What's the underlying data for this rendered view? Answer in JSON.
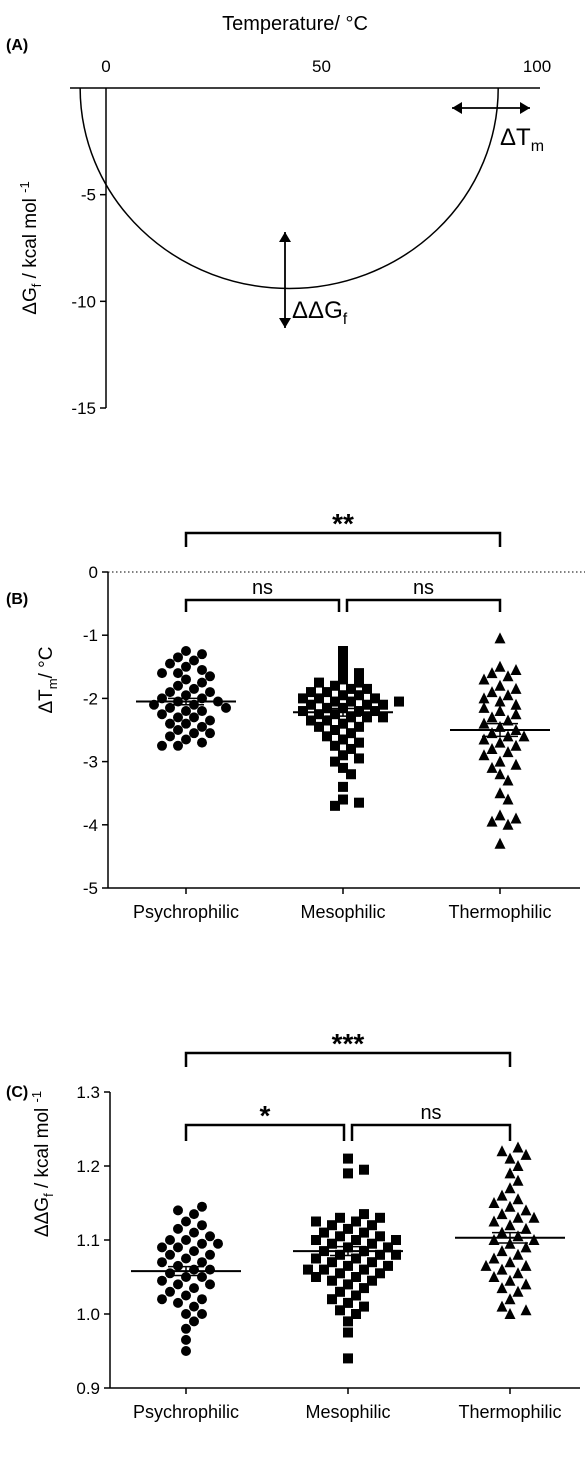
{
  "chart_data": [
    {
      "panel": "(A)",
      "type": "line",
      "xlabel": "Temperature/ °C",
      "ylabel": {
        "main": "ΔG",
        "sub": "f",
        "rest": " / kcal mol ",
        "sup": "-1"
      },
      "xlim": [
        0,
        100
      ],
      "ylim": [
        -15,
        0
      ],
      "xticks": [
        "0",
        "50",
        "100"
      ],
      "yticks": [
        "-5",
        "-10",
        "-15"
      ],
      "curve": {
        "Tmin": -9,
        "Tmax": 88,
        "Ts": 42.5,
        "Gmin": -9.4
      },
      "annotations": [
        {
          "main": "ΔT",
          "sub": "m"
        },
        {
          "main": "ΔΔG",
          "sub": "f"
        }
      ]
    },
    {
      "panel": "(B)",
      "type": "scatter",
      "ylabel": {
        "main": "ΔT",
        "sub": "m",
        "rest": "/ °C"
      },
      "ylim": [
        -5,
        0
      ],
      "yticks": [
        "0",
        "-1",
        "-2",
        "-3",
        "-4",
        "-5"
      ],
      "categories": [
        "Psychrophilic",
        "Mesophilic",
        "Thermophilic"
      ],
      "markers": [
        "circle",
        "square",
        "triangle"
      ],
      "means": [
        -2.05,
        -2.22,
        -2.5
      ],
      "sems": [
        0.05,
        0.06,
        0.1
      ],
      "significance": [
        {
          "from": 0,
          "to": 2,
          "label": "**"
        },
        {
          "from": 0,
          "to": 1,
          "label": "ns"
        },
        {
          "from": 1,
          "to": 2,
          "label": "ns"
        }
      ],
      "series": [
        {
          "name": "Psychrophilic",
          "values": [
            -1.25,
            -1.3,
            -1.35,
            -1.4,
            -1.5,
            -1.55,
            -1.6,
            -1.6,
            -1.7,
            -1.75,
            -1.8,
            -1.85,
            -1.9,
            -1.9,
            -1.95,
            -2.0,
            -2.0,
            -2.05,
            -2.05,
            -2.1,
            -2.1,
            -2.15,
            -2.2,
            -2.2,
            -2.25,
            -2.3,
            -2.3,
            -2.35,
            -2.4,
            -2.4,
            -2.45,
            -2.5,
            -2.55,
            -2.55,
            -2.6,
            -2.65,
            -2.7,
            -2.75,
            -2.75,
            -1.65,
            -2.15,
            -1.45
          ]
        },
        {
          "name": "Mesophilic",
          "values": [
            -1.25,
            -1.4,
            -1.55,
            -1.6,
            -1.7,
            -1.75,
            -1.8,
            -1.85,
            -1.85,
            -1.9,
            -1.95,
            -1.95,
            -2.0,
            -2.0,
            -2.0,
            -2.05,
            -2.05,
            -2.1,
            -2.1,
            -2.15,
            -2.15,
            -2.2,
            -2.2,
            -2.2,
            -2.25,
            -2.25,
            -2.3,
            -2.3,
            -2.35,
            -2.35,
            -2.4,
            -2.45,
            -2.5,
            -2.55,
            -2.6,
            -2.65,
            -2.7,
            -2.75,
            -2.8,
            -2.9,
            -2.95,
            -3.0,
            -3.1,
            -3.2,
            -3.4,
            -3.6,
            -3.65,
            -3.7,
            -1.9,
            -2.1,
            -2.3,
            -2.45,
            -1.75,
            -2.05
          ]
        },
        {
          "name": "Thermophilic",
          "values": [
            -1.05,
            -1.5,
            -1.55,
            -1.6,
            -1.65,
            -1.7,
            -1.8,
            -1.85,
            -1.9,
            -1.95,
            -2.0,
            -2.05,
            -2.1,
            -2.2,
            -2.25,
            -2.3,
            -2.35,
            -2.4,
            -2.45,
            -2.5,
            -2.55,
            -2.6,
            -2.65,
            -2.7,
            -2.75,
            -2.8,
            -2.85,
            -2.9,
            -3.0,
            -3.05,
            -3.1,
            -3.2,
            -3.3,
            -3.5,
            -3.6,
            -3.85,
            -3.9,
            -3.95,
            -4.0,
            -4.3,
            -2.15,
            -2.6
          ]
        }
      ],
      "xlabels": [
        "Psychrophilic",
        "Mesophilic",
        "Thermophilic"
      ]
    },
    {
      "panel": "(C)",
      "type": "scatter",
      "ylabel": {
        "main": "ΔΔG",
        "sub": "f",
        "rest": " / kcal mol ",
        "sup": "-1"
      },
      "ylim": [
        0.9,
        1.3
      ],
      "yticks": [
        "1.3",
        "1.2",
        "1.1",
        "1.0",
        "0.9"
      ],
      "categories": [
        "Psychrophilic",
        "Mesophilic",
        "Thermophilic"
      ],
      "markers": [
        "circle",
        "square",
        "triangle"
      ],
      "means": [
        1.058,
        1.085,
        1.103
      ],
      "sems": [
        0.006,
        0.006,
        0.007
      ],
      "significance": [
        {
          "from": 0,
          "to": 2,
          "label": "***"
        },
        {
          "from": 0,
          "to": 1,
          "label": "*"
        },
        {
          "from": 1,
          "to": 2,
          "label": "ns"
        }
      ],
      "series": [
        {
          "name": "Psychrophilic",
          "values": [
            0.95,
            0.965,
            0.98,
            0.99,
            1.0,
            1.0,
            1.01,
            1.015,
            1.02,
            1.02,
            1.025,
            1.03,
            1.035,
            1.04,
            1.04,
            1.045,
            1.05,
            1.05,
            1.055,
            1.06,
            1.06,
            1.065,
            1.07,
            1.07,
            1.075,
            1.08,
            1.08,
            1.085,
            1.09,
            1.09,
            1.095,
            1.1,
            1.1,
            1.105,
            1.11,
            1.115,
            1.12,
            1.125,
            1.135,
            1.14,
            1.145,
            1.095
          ]
        },
        {
          "name": "Mesophilic",
          "values": [
            0.94,
            0.975,
            0.99,
            1.0,
            1.005,
            1.01,
            1.015,
            1.02,
            1.025,
            1.03,
            1.035,
            1.04,
            1.045,
            1.045,
            1.05,
            1.05,
            1.055,
            1.055,
            1.06,
            1.06,
            1.065,
            1.065,
            1.07,
            1.07,
            1.075,
            1.075,
            1.08,
            1.08,
            1.085,
            1.085,
            1.09,
            1.09,
            1.095,
            1.095,
            1.1,
            1.1,
            1.105,
            1.105,
            1.11,
            1.11,
            1.115,
            1.12,
            1.12,
            1.125,
            1.125,
            1.13,
            1.13,
            1.135,
            1.19,
            1.195,
            1.21,
            1.06,
            1.1,
            1.08
          ]
        },
        {
          "name": "Thermophilic",
          "values": [
            1.0,
            1.005,
            1.01,
            1.02,
            1.03,
            1.035,
            1.04,
            1.045,
            1.05,
            1.055,
            1.06,
            1.065,
            1.07,
            1.075,
            1.08,
            1.085,
            1.09,
            1.095,
            1.1,
            1.1,
            1.105,
            1.11,
            1.115,
            1.12,
            1.125,
            1.13,
            1.135,
            1.14,
            1.145,
            1.15,
            1.155,
            1.16,
            1.17,
            1.18,
            1.19,
            1.2,
            1.21,
            1.215,
            1.22,
            1.225,
            1.065,
            1.13
          ]
        }
      ],
      "xlabels": [
        "Psychrophilic",
        "Mesophilic",
        "Thermophilic"
      ]
    }
  ]
}
